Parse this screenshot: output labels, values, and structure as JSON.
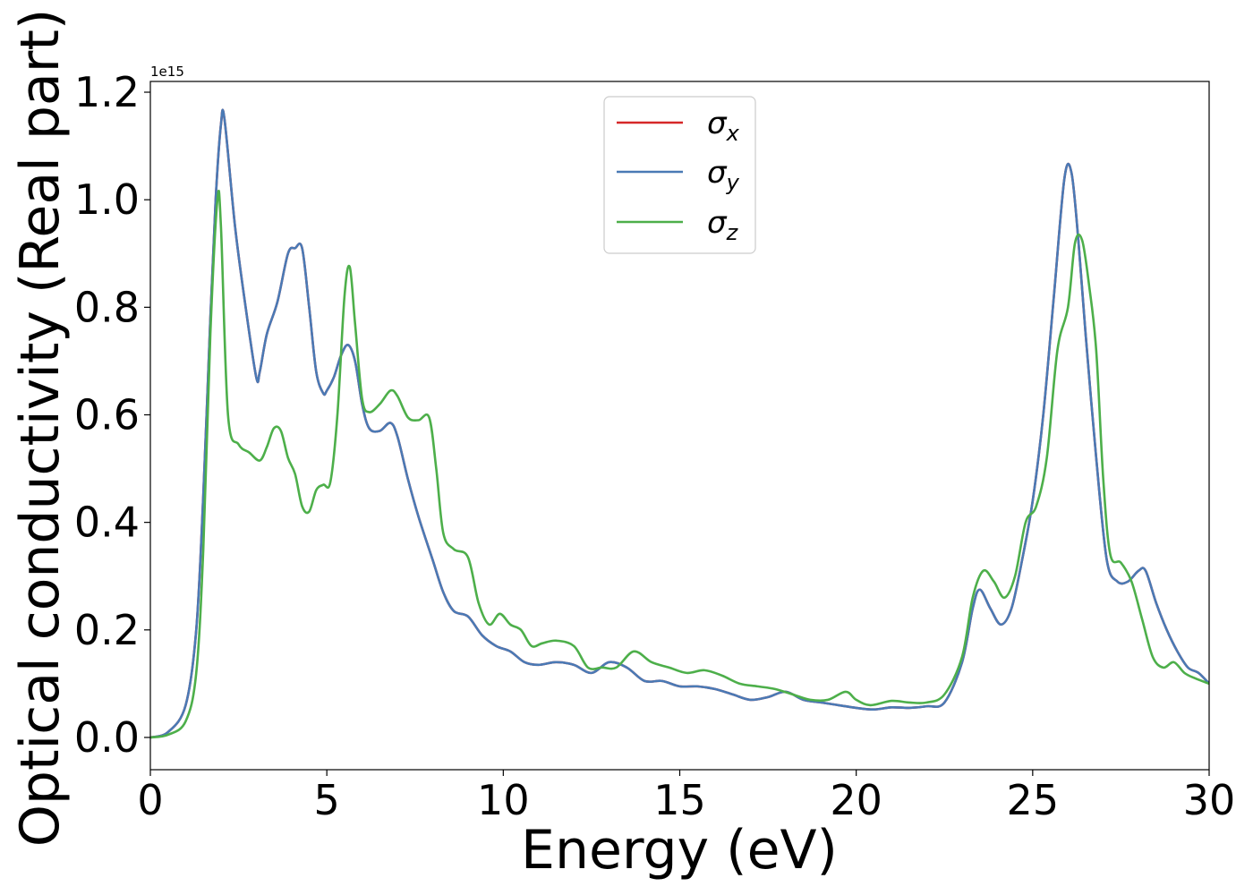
{
  "chart_data": {
    "type": "line",
    "xlabel": "Energy (eV)",
    "ylabel": "Optical conductivity (Real part)",
    "y_offset_label": "1e15",
    "y_scale": 1000000000000000.0,
    "xlim": [
      0,
      30
    ],
    "ylim": [
      -0.06,
      1.22
    ],
    "x_ticks": [
      0,
      5,
      10,
      15,
      20,
      25,
      30
    ],
    "x_tick_labels": [
      "0",
      "5",
      "10",
      "15",
      "20",
      "25",
      "30"
    ],
    "y_ticks": [
      0.0,
      0.2,
      0.4,
      0.6,
      0.8,
      1.0,
      1.2
    ],
    "y_tick_labels": [
      "0.0",
      "0.2",
      "0.4",
      "0.6",
      "0.8",
      "1.0",
      "1.2"
    ],
    "grid": false,
    "legend_position": "top-center",
    "series": [
      {
        "name": "σ_x",
        "symbol": "σ",
        "subscript": "x",
        "color": "#d62728",
        "x": [
          0,
          0.5,
          1.0,
          1.3,
          1.5,
          1.7,
          1.85,
          2.0,
          2.1,
          2.4,
          2.7,
          3.0,
          3.1,
          3.3,
          3.6,
          3.9,
          4.1,
          4.3,
          4.5,
          4.7,
          4.9,
          5.0,
          5.2,
          5.4,
          5.6,
          5.8,
          6.0,
          6.2,
          6.5,
          6.8,
          7.0,
          7.3,
          7.6,
          8.0,
          8.3,
          8.6,
          9.0,
          9.4,
          9.8,
          10.2,
          10.6,
          11.0,
          11.5,
          12.0,
          12.5,
          13.0,
          13.5,
          14.0,
          14.5,
          15.0,
          15.5,
          16.0,
          16.5,
          17.0,
          17.5,
          18.0,
          18.5,
          19.0,
          19.5,
          20.0,
          20.5,
          21.0,
          21.5,
          22.0,
          22.5,
          23.0,
          23.3,
          23.5,
          23.8,
          24.1,
          24.4,
          24.7,
          25.0,
          25.3,
          25.6,
          25.9,
          26.1,
          26.3,
          26.5,
          26.8,
          27.1,
          27.4,
          27.7,
          28.0,
          28.2,
          28.5,
          28.8,
          29.1,
          29.4,
          29.7,
          30.0
        ],
        "y": [
          0.0,
          0.01,
          0.06,
          0.2,
          0.45,
          0.78,
          1.0,
          1.14,
          1.15,
          0.95,
          0.8,
          0.67,
          0.68,
          0.75,
          0.81,
          0.9,
          0.91,
          0.91,
          0.8,
          0.68,
          0.64,
          0.645,
          0.67,
          0.71,
          0.73,
          0.7,
          0.62,
          0.575,
          0.57,
          0.585,
          0.56,
          0.48,
          0.41,
          0.33,
          0.27,
          0.235,
          0.225,
          0.19,
          0.17,
          0.16,
          0.14,
          0.135,
          0.14,
          0.135,
          0.12,
          0.14,
          0.13,
          0.105,
          0.105,
          0.095,
          0.095,
          0.09,
          0.08,
          0.07,
          0.075,
          0.085,
          0.07,
          0.065,
          0.06,
          0.055,
          0.052,
          0.056,
          0.055,
          0.058,
          0.065,
          0.14,
          0.24,
          0.275,
          0.24,
          0.21,
          0.24,
          0.33,
          0.44,
          0.6,
          0.82,
          1.04,
          1.05,
          0.92,
          0.75,
          0.52,
          0.33,
          0.29,
          0.29,
          0.31,
          0.31,
          0.25,
          0.2,
          0.16,
          0.13,
          0.12,
          0.1
        ]
      },
      {
        "name": "σ_y",
        "symbol": "σ",
        "subscript": "y",
        "color": "#4a7ab5",
        "x": [
          0,
          0.5,
          1.0,
          1.3,
          1.5,
          1.7,
          1.85,
          2.0,
          2.1,
          2.4,
          2.7,
          3.0,
          3.1,
          3.3,
          3.6,
          3.9,
          4.1,
          4.3,
          4.5,
          4.7,
          4.9,
          5.0,
          5.2,
          5.4,
          5.6,
          5.8,
          6.0,
          6.2,
          6.5,
          6.8,
          7.0,
          7.3,
          7.6,
          8.0,
          8.3,
          8.6,
          9.0,
          9.4,
          9.8,
          10.2,
          10.6,
          11.0,
          11.5,
          12.0,
          12.5,
          13.0,
          13.5,
          14.0,
          14.5,
          15.0,
          15.5,
          16.0,
          16.5,
          17.0,
          17.5,
          18.0,
          18.5,
          19.0,
          19.5,
          20.0,
          20.5,
          21.0,
          21.5,
          22.0,
          22.5,
          23.0,
          23.3,
          23.5,
          23.8,
          24.1,
          24.4,
          24.7,
          25.0,
          25.3,
          25.6,
          25.9,
          26.1,
          26.3,
          26.5,
          26.8,
          27.1,
          27.4,
          27.7,
          28.0,
          28.2,
          28.5,
          28.8,
          29.1,
          29.4,
          29.7,
          30.0
        ],
        "y": [
          0.0,
          0.01,
          0.06,
          0.2,
          0.45,
          0.78,
          1.0,
          1.14,
          1.15,
          0.95,
          0.8,
          0.67,
          0.68,
          0.75,
          0.81,
          0.9,
          0.91,
          0.91,
          0.8,
          0.68,
          0.64,
          0.645,
          0.67,
          0.71,
          0.73,
          0.7,
          0.62,
          0.575,
          0.57,
          0.585,
          0.56,
          0.48,
          0.41,
          0.33,
          0.27,
          0.235,
          0.225,
          0.19,
          0.17,
          0.16,
          0.14,
          0.135,
          0.14,
          0.135,
          0.12,
          0.14,
          0.13,
          0.105,
          0.105,
          0.095,
          0.095,
          0.09,
          0.08,
          0.07,
          0.075,
          0.085,
          0.07,
          0.065,
          0.06,
          0.055,
          0.052,
          0.056,
          0.055,
          0.058,
          0.065,
          0.14,
          0.24,
          0.275,
          0.24,
          0.21,
          0.24,
          0.33,
          0.44,
          0.6,
          0.82,
          1.04,
          1.05,
          0.92,
          0.75,
          0.52,
          0.33,
          0.29,
          0.29,
          0.31,
          0.31,
          0.25,
          0.2,
          0.16,
          0.13,
          0.12,
          0.1
        ]
      },
      {
        "name": "σ_z",
        "symbol": "σ",
        "subscript": "z",
        "color": "#4daf4a",
        "x": [
          0,
          0.5,
          1.0,
          1.3,
          1.5,
          1.7,
          1.9,
          2.0,
          2.2,
          2.5,
          2.8,
          3.1,
          3.3,
          3.5,
          3.7,
          3.9,
          4.1,
          4.3,
          4.5,
          4.7,
          4.9,
          5.1,
          5.3,
          5.5,
          5.65,
          5.8,
          6.0,
          6.2,
          6.5,
          6.8,
          7.0,
          7.3,
          7.6,
          7.9,
          8.1,
          8.3,
          8.6,
          9.0,
          9.3,
          9.6,
          9.9,
          10.2,
          10.5,
          10.8,
          11.1,
          11.5,
          12.0,
          12.4,
          12.8,
          13.2,
          13.7,
          14.2,
          14.7,
          15.2,
          15.7,
          16.2,
          16.7,
          17.2,
          17.7,
          18.2,
          18.7,
          19.2,
          19.7,
          20.0,
          20.4,
          21.0,
          21.5,
          22.0,
          22.5,
          23.0,
          23.3,
          23.6,
          23.9,
          24.2,
          24.5,
          24.8,
          25.1,
          25.4,
          25.7,
          26.0,
          26.2,
          26.4,
          26.6,
          26.8,
          27.0,
          27.2,
          27.5,
          27.8,
          28.1,
          28.4,
          28.7,
          29.0,
          29.3,
          29.6,
          30.0
        ],
        "y": [
          0.0,
          0.005,
          0.03,
          0.12,
          0.35,
          0.75,
          1.0,
          0.95,
          0.6,
          0.545,
          0.53,
          0.515,
          0.54,
          0.575,
          0.57,
          0.52,
          0.49,
          0.43,
          0.42,
          0.46,
          0.47,
          0.475,
          0.6,
          0.82,
          0.875,
          0.77,
          0.63,
          0.605,
          0.62,
          0.645,
          0.635,
          0.595,
          0.59,
          0.595,
          0.5,
          0.38,
          0.35,
          0.335,
          0.25,
          0.21,
          0.23,
          0.21,
          0.2,
          0.17,
          0.175,
          0.18,
          0.17,
          0.13,
          0.13,
          0.13,
          0.16,
          0.14,
          0.13,
          0.12,
          0.125,
          0.115,
          0.1,
          0.095,
          0.09,
          0.08,
          0.07,
          0.07,
          0.085,
          0.07,
          0.06,
          0.068,
          0.065,
          0.065,
          0.08,
          0.15,
          0.26,
          0.31,
          0.29,
          0.26,
          0.3,
          0.4,
          0.43,
          0.52,
          0.72,
          0.8,
          0.92,
          0.925,
          0.84,
          0.72,
          0.48,
          0.34,
          0.325,
          0.29,
          0.22,
          0.15,
          0.13,
          0.14,
          0.12,
          0.11,
          0.1
        ]
      }
    ]
  }
}
